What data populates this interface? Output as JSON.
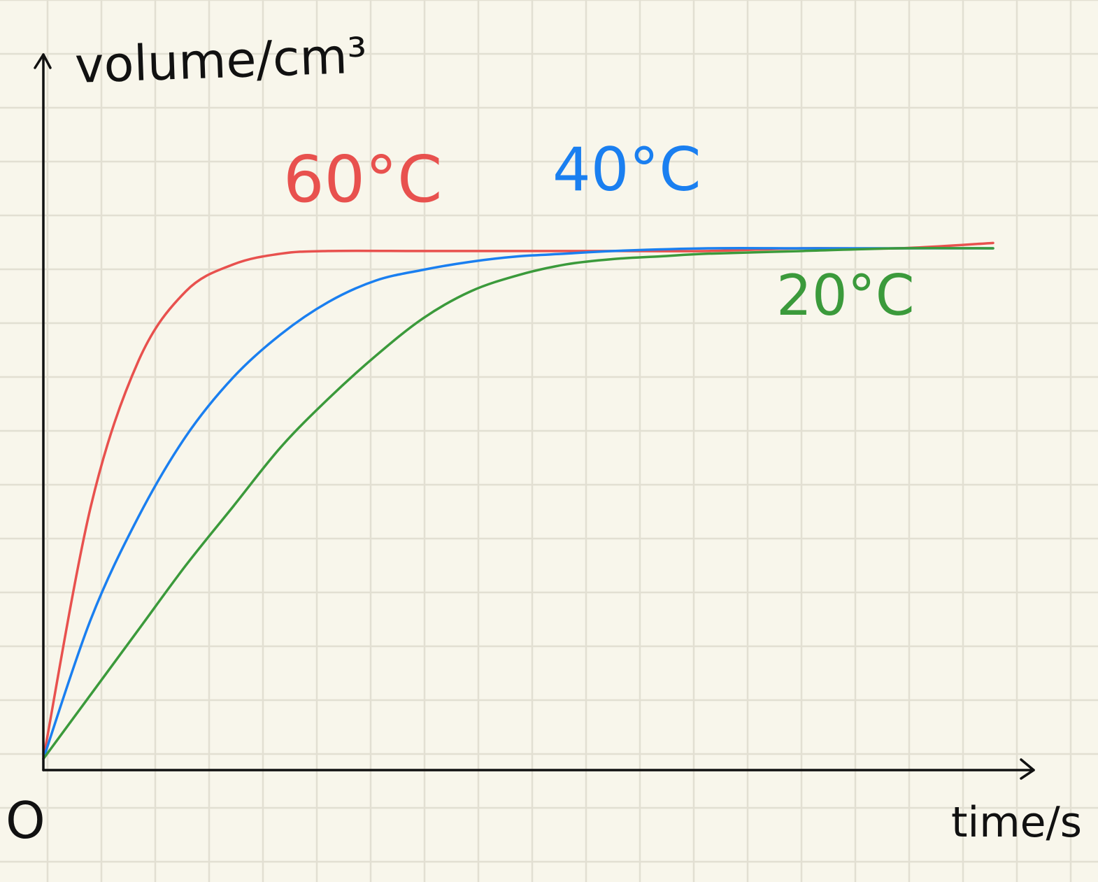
{
  "chart_data": {
    "type": "line",
    "title": "",
    "xlabel": "time/s",
    "ylabel": "volume/cm³",
    "origin_label": "O",
    "grid": true,
    "axis_ticks": false,
    "paper_color": "#f8f6eb",
    "grid_color": "#e2dfd2",
    "axis_color": "#111111",
    "xlim": [
      0,
      1
    ],
    "ylim": [
      0,
      1
    ],
    "series": [
      {
        "name": "60°C",
        "color": "#e8514e",
        "x": [
          0,
          0.05,
          0.1,
          0.15,
          0.2,
          0.25,
          0.3,
          0.4,
          0.5,
          0.6,
          0.7,
          0.8,
          0.9,
          1.0
        ],
        "y": [
          0,
          0.47,
          0.74,
          0.87,
          0.92,
          0.94,
          0.945,
          0.945,
          0.945,
          0.945,
          0.945,
          0.95,
          0.95,
          0.96
        ]
      },
      {
        "name": "40°C",
        "color": "#1a7ff0",
        "x": [
          0,
          0.05,
          0.1,
          0.15,
          0.2,
          0.25,
          0.3,
          0.35,
          0.4,
          0.45,
          0.5,
          0.55,
          0.6,
          0.7,
          0.8,
          0.9,
          1.0
        ],
        "y": [
          0,
          0.26,
          0.45,
          0.6,
          0.71,
          0.79,
          0.85,
          0.89,
          0.91,
          0.925,
          0.935,
          0.94,
          0.945,
          0.95,
          0.95,
          0.95,
          0.95
        ]
      },
      {
        "name": "20°C",
        "color": "#3b9a3b",
        "x": [
          0,
          0.05,
          0.1,
          0.15,
          0.2,
          0.25,
          0.3,
          0.35,
          0.4,
          0.45,
          0.5,
          0.55,
          0.6,
          0.65,
          0.7,
          0.8,
          0.9,
          1.0
        ],
        "y": [
          0,
          0.12,
          0.24,
          0.36,
          0.47,
          0.58,
          0.67,
          0.75,
          0.82,
          0.87,
          0.9,
          0.92,
          0.93,
          0.935,
          0.94,
          0.945,
          0.95,
          0.95
        ]
      }
    ],
    "annotations": [
      {
        "text": "60°C",
        "color": "#e8514e",
        "series": "60°C"
      },
      {
        "text": "40°C",
        "color": "#1a7ff0",
        "series": "40°C"
      },
      {
        "text": "20°C",
        "color": "#3b9a3b",
        "series": "20°C"
      }
    ]
  }
}
